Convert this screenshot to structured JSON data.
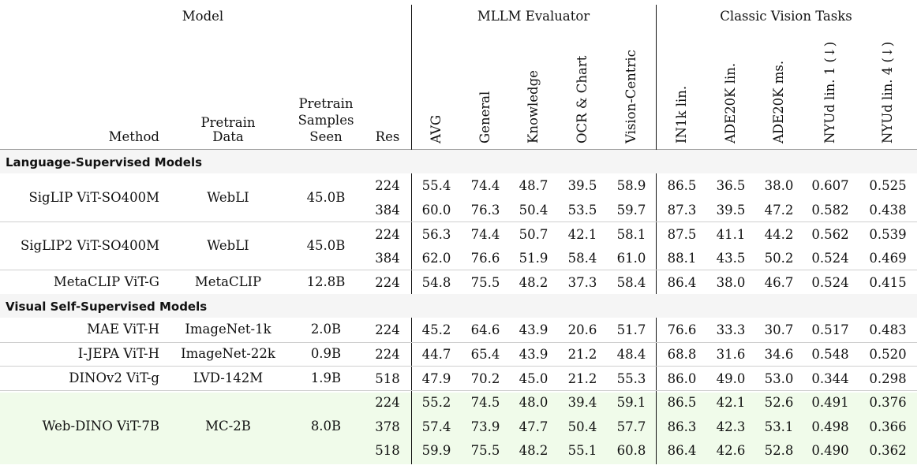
{
  "headers": {
    "group_model": "Model",
    "group_mllm": "MLLM Evaluator",
    "group_vision": "Classic Vision Tasks",
    "method": "Method",
    "pretrain_data": [
      "Pretrain",
      "Data"
    ],
    "pretrain_samples": [
      "Pretrain",
      "Samples",
      "Seen"
    ],
    "res": "Res",
    "mllm_cols": [
      "AVG",
      "General",
      "Knowledge",
      "OCR & Chart",
      "Vision-Centric"
    ],
    "vision_cols": [
      "IN1k lin.",
      "ADE20K lin.",
      "ADE20K ms.",
      "NYUd lin. 1 (↓)",
      "NYUd lin. 4 (↓)"
    ]
  },
  "sections": [
    {
      "title": "Language-Supervised Models",
      "groups": [
        {
          "method": "SigLIP ViT-SO400M",
          "data": "WebLI",
          "samples": "45.0B",
          "rows": [
            {
              "res": "224",
              "values": [
                "55.4",
                "74.4",
                "48.7",
                "39.5",
                "58.9",
                "86.5",
                "36.5",
                "38.0",
                "0.607",
                "0.525"
              ]
            },
            {
              "res": "384",
              "values": [
                "60.0",
                "76.3",
                "50.4",
                "53.5",
                "59.7",
                "87.3",
                "39.5",
                "47.2",
                "0.582",
                "0.438"
              ]
            }
          ]
        },
        {
          "method": "SigLIP2 ViT-SO400M",
          "data": "WebLI",
          "samples": "45.0B",
          "rows": [
            {
              "res": "224",
              "values": [
                "56.3",
                "74.4",
                "50.7",
                "42.1",
                "58.1",
                "87.5",
                "41.1",
                "44.2",
                "0.562",
                "0.539"
              ]
            },
            {
              "res": "384",
              "values": [
                "62.0",
                "76.6",
                "51.9",
                "58.4",
                "61.0",
                "88.1",
                "43.5",
                "50.2",
                "0.524",
                "0.469"
              ]
            }
          ]
        },
        {
          "method": "MetaCLIP ViT-G",
          "data": "MetaCLIP",
          "samples": "12.8B",
          "rows": [
            {
              "res": "224",
              "values": [
                "54.8",
                "75.5",
                "48.2",
                "37.3",
                "58.4",
                "86.4",
                "38.0",
                "46.7",
                "0.524",
                "0.415"
              ]
            }
          ]
        }
      ]
    },
    {
      "title": "Visual Self-Supervised Models",
      "groups": [
        {
          "method": "MAE ViT-H",
          "data": "ImageNet-1k",
          "samples": "2.0B",
          "rows": [
            {
              "res": "224",
              "values": [
                "45.2",
                "64.6",
                "43.9",
                "20.6",
                "51.7",
                "76.6",
                "33.3",
                "30.7",
                "0.517",
                "0.483"
              ]
            }
          ]
        },
        {
          "method": "I-JEPA ViT-H",
          "data": "ImageNet-22k",
          "samples": "0.9B",
          "rows": [
            {
              "res": "224",
              "values": [
                "44.7",
                "65.4",
                "43.9",
                "21.2",
                "48.4",
                "68.8",
                "31.6",
                "34.6",
                "0.548",
                "0.520"
              ]
            }
          ]
        },
        {
          "method": "DINOv2 ViT-g",
          "data": "LVD-142M",
          "samples": "1.9B",
          "rows": [
            {
              "res": "518",
              "values": [
                "47.9",
                "70.2",
                "45.0",
                "21.2",
                "55.3",
                "86.0",
                "49.0",
                "53.0",
                "0.344",
                "0.298"
              ]
            }
          ]
        },
        {
          "method": "Web-DINO ViT-7B",
          "data": "MC-2B",
          "samples": "8.0B",
          "highlight": true,
          "rows": [
            {
              "res": "224",
              "values": [
                "55.2",
                "74.5",
                "48.0",
                "39.4",
                "59.1",
                "86.5",
                "42.1",
                "52.6",
                "0.491",
                "0.376"
              ]
            },
            {
              "res": "378",
              "values": [
                "57.4",
                "73.9",
                "47.7",
                "50.4",
                "57.7",
                "86.3",
                "42.3",
                "53.1",
                "0.498",
                "0.366"
              ]
            },
            {
              "res": "518",
              "values": [
                "59.9",
                "75.5",
                "48.2",
                "55.1",
                "60.8",
                "86.4",
                "42.6",
                "52.8",
                "0.490",
                "0.362"
              ]
            }
          ]
        }
      ]
    }
  ],
  "colors": {
    "section_band": "#f5f5f5",
    "highlight_band": "#f0fbea"
  }
}
